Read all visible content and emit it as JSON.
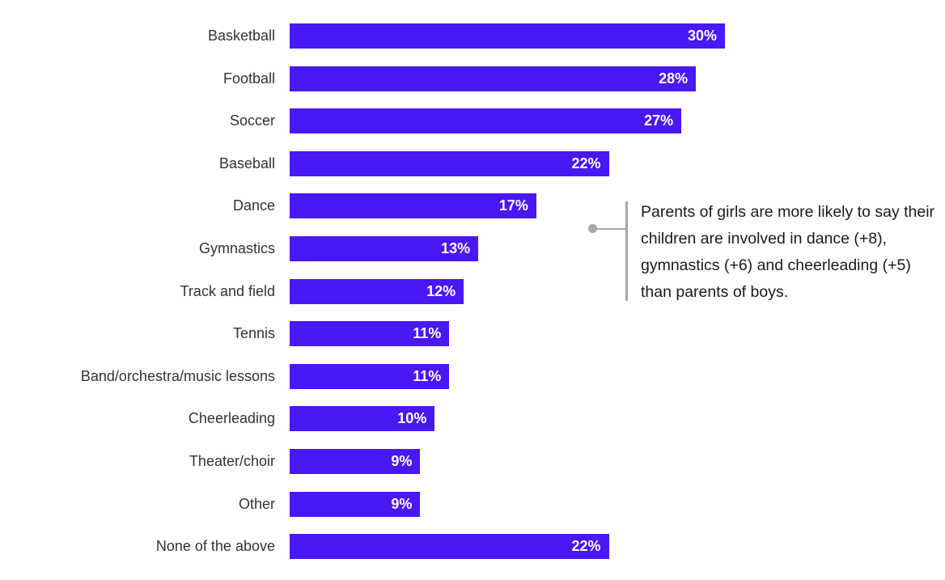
{
  "chart_data": {
    "type": "bar",
    "orientation": "horizontal",
    "categories": [
      "Basketball",
      "Football",
      "Soccer",
      "Baseball",
      "Dance",
      "Gymnastics",
      "Track and field",
      "Tennis",
      "Band/orchestra/music lessons",
      "Cheerleading",
      "Theater/choir",
      "Other",
      "None of the above"
    ],
    "values": [
      30,
      28,
      27,
      22,
      17,
      13,
      12,
      11,
      11,
      10,
      9,
      9,
      22
    ],
    "value_labels": [
      "30%",
      "28%",
      "27%",
      "22%",
      "17%",
      "13%",
      "12%",
      "11%",
      "11%",
      "10%",
      "9%",
      "9%",
      "22%"
    ],
    "unit": "%",
    "xlim": [
      0,
      45
    ],
    "grid": false,
    "legend": "none",
    "bar_color": "#4A17F5",
    "annotation": {
      "text": "Parents of girls are more likely to say their children are involved in dance (+8), gymnastics (+6) and cheerleading (+5) than parents of boys."
    }
  }
}
